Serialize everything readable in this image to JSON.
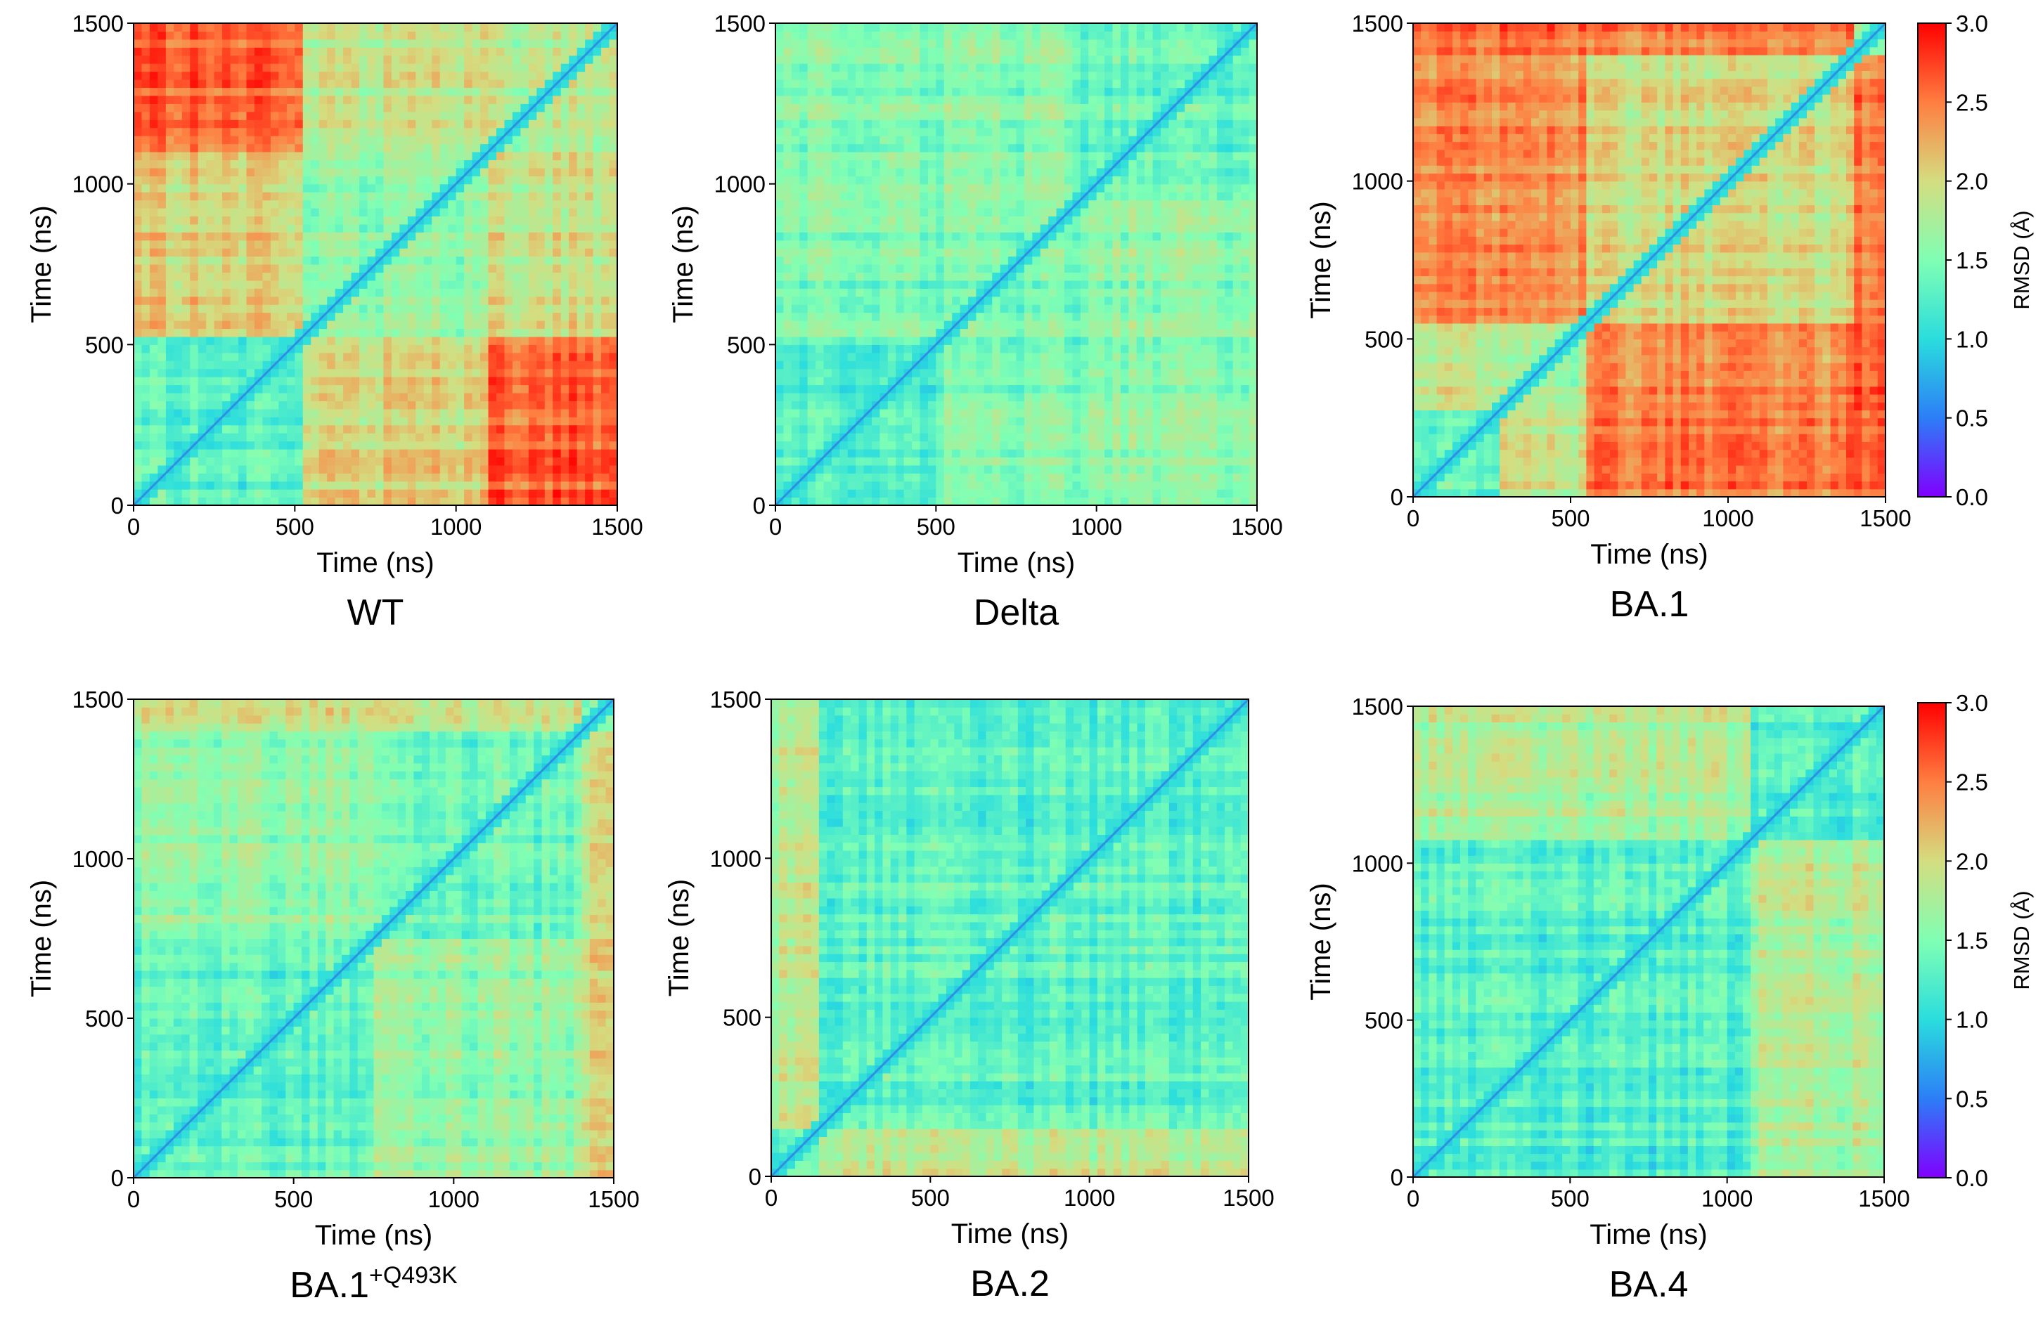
{
  "chart_data": [
    {
      "type": "heatmap",
      "title": "WT",
      "xlabel": "Time (ns)",
      "ylabel": "Time (ns)",
      "xlim": [
        0,
        1500
      ],
      "ylim": [
        0,
        1500
      ],
      "xticks": [
        "0",
        "500",
        "1000",
        "1500"
      ],
      "yticks": [
        "0",
        "500",
        "1000",
        "1500"
      ],
      "block_boundaries_ns": [
        0,
        530,
        1090,
        1500
      ],
      "block_mean_rmsd": [
        [
          1.3,
          2.05,
          2.6
        ],
        [
          2.05,
          1.6,
          1.9
        ],
        [
          2.6,
          1.9,
          1.8
        ]
      ]
    },
    {
      "type": "heatmap",
      "title": "Delta",
      "xlabel": "Time (ns)",
      "ylabel": "Time (ns)",
      "xlim": [
        0,
        1500
      ],
      "ylim": [
        0,
        1500
      ],
      "xticks": [
        "0",
        "500",
        "1000",
        "1500"
      ],
      "yticks": [
        "0",
        "500",
        "1000",
        "1500"
      ],
      "block_boundaries_ns": [
        0,
        500,
        960,
        1500
      ],
      "block_mean_rmsd": [
        [
          1.25,
          1.5,
          1.55
        ],
        [
          1.5,
          1.45,
          1.55
        ],
        [
          1.55,
          1.55,
          1.35
        ]
      ]
    },
    {
      "type": "heatmap",
      "title": "BA.1",
      "xlabel": "Time (ns)",
      "ylabel": "Time (ns)",
      "xlim": [
        0,
        1500
      ],
      "ylim": [
        0,
        1500
      ],
      "xticks": [
        "0",
        "500",
        "1000",
        "1500"
      ],
      "yticks": [
        "0",
        "500",
        "1000",
        "1500"
      ],
      "block_boundaries_ns": [
        0,
        280,
        560,
        1400,
        1500
      ],
      "block_mean_rmsd": [
        [
          1.4,
          1.9,
          2.5,
          2.6
        ],
        [
          1.9,
          1.7,
          2.4,
          2.6
        ],
        [
          2.5,
          2.4,
          2.0,
          2.5
        ],
        [
          2.6,
          2.6,
          2.5,
          1.5
        ]
      ]
    },
    {
      "type": "heatmap",
      "title": "BA.1",
      "title_superscript": "+Q493K",
      "xlabel": "Time (ns)",
      "ylabel": "Time (ns)",
      "xlim": [
        0,
        1500
      ],
      "ylim": [
        0,
        1500
      ],
      "xticks": [
        "0",
        "500",
        "1000",
        "1500"
      ],
      "yticks": [
        "0",
        "500",
        "1000",
        "1500"
      ],
      "block_boundaries_ns": [
        0,
        760,
        1400,
        1500
      ],
      "block_mean_rmsd": [
        [
          1.3,
          1.6,
          1.95
        ],
        [
          1.6,
          1.4,
          1.9
        ],
        [
          1.95,
          1.9,
          1.5
        ]
      ]
    },
    {
      "type": "heatmap",
      "title": "BA.2",
      "xlabel": "Time (ns)",
      "ylabel": "Time (ns)",
      "xlim": [
        0,
        1500
      ],
      "ylim": [
        0,
        1500
      ],
      "xticks": [
        "0",
        "500",
        "1000",
        "1500"
      ],
      "yticks": [
        "0",
        "500",
        "1000",
        "1500"
      ],
      "block_boundaries_ns": [
        0,
        150,
        1500
      ],
      "block_mean_rmsd": [
        [
          1.3,
          1.8
        ],
        [
          1.8,
          1.3
        ]
      ]
    },
    {
      "type": "heatmap",
      "title": "BA.4",
      "xlabel": "Time (ns)",
      "ylabel": "Time (ns)",
      "xlim": [
        0,
        1500
      ],
      "ylim": [
        0,
        1500
      ],
      "xticks": [
        "0",
        "500",
        "1000",
        "1500"
      ],
      "yticks": [
        "0",
        "500",
        "1000",
        "1500"
      ],
      "block_boundaries_ns": [
        0,
        1070,
        1500
      ],
      "block_mean_rmsd": [
        [
          1.25,
          1.75
        ],
        [
          1.75,
          1.25
        ]
      ]
    }
  ],
  "colorbar": {
    "label": "RMSD (Å)",
    "range": [
      0.0,
      3.0
    ],
    "ticks": [
      "0.0",
      "0.5",
      "1.0",
      "1.5",
      "2.0",
      "2.5",
      "3.0"
    ],
    "colormap": "rainbow",
    "colors": [
      "#8000ff",
      "#2c7ef7",
      "#2adddd",
      "#80ffb4",
      "#d4dd80",
      "#ff7e41",
      "#ff0000"
    ]
  }
}
